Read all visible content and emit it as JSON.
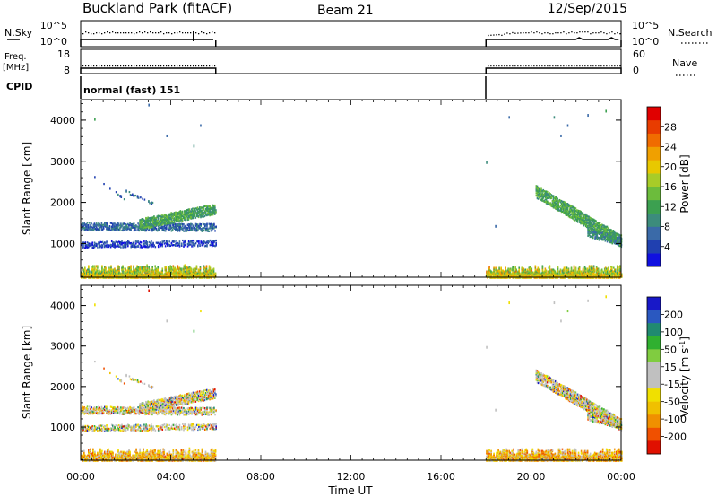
{
  "header": {
    "site": "Buckland Park (fitACF)",
    "beam": "Beam 21",
    "date": "12/Sep/2015"
  },
  "status_panels": {
    "nsky_label": "N.Sky",
    "nsearch_label": "N.Search",
    "freq_label": "Freq.",
    "freq_unit": "[MHz]",
    "nave_label": "Nave",
    "cpid_label": "CPID",
    "cpid_text": "normal (fast) 151",
    "noise_left_ticks": [
      "10^5",
      "10^0"
    ],
    "noise_right_ticks": [
      "10^5",
      "10^0"
    ],
    "freq_ticks": [
      "18",
      "8"
    ],
    "nave_ticks": [
      "60",
      "0"
    ]
  },
  "chart_data": [
    {
      "type": "heatmap",
      "quantity": "power",
      "ylabel": "Slant Range [km]",
      "xlabel": "Time UT",
      "x_ticks": [
        "00:00",
        "04:00",
        "08:00",
        "12:00",
        "16:00",
        "20:00",
        "00:00"
      ],
      "x_range_hours": [
        0,
        24
      ],
      "y_ticks": [
        1000,
        2000,
        3000,
        4000
      ],
      "ylim": [
        180,
        4500
      ],
      "data_intervals_hours": [
        [
          0,
          6
        ],
        [
          18,
          24
        ]
      ],
      "colorbar": {
        "label": "Power [dB]",
        "tick_labels": [
          "4",
          "8",
          "12",
          "16",
          "20",
          "24",
          "28"
        ],
        "colors": [
          "#1010e0",
          "#2040b0",
          "#3a6aa8",
          "#3c8c7c",
          "#3ca050",
          "#6cbc3c",
          "#a8cc28",
          "#e8c800",
          "#f0a000",
          "#f06c00",
          "#e83c00",
          "#e00000"
        ]
      },
      "features": [
        {
          "name": "near-range ground scatter",
          "t_hours": [
            0,
            6
          ],
          "range_km": [
            200,
            450
          ]
        },
        {
          "name": "morning scatter band",
          "t_hours": [
            0,
            6
          ],
          "range_km": [
            900,
            1600
          ]
        },
        {
          "name": "morning rising echo",
          "t_hours": [
            2.5,
            6
          ],
          "range_km": [
            1500,
            2000
          ]
        },
        {
          "name": "near-range ground scatter",
          "t_hours": [
            18,
            24
          ],
          "range_km": [
            200,
            450
          ]
        },
        {
          "name": "evening descending echo",
          "t_hours": [
            20,
            24
          ],
          "range_km": [
            900,
            2300
          ]
        }
      ]
    },
    {
      "type": "heatmap",
      "quantity": "velocity",
      "ylabel": "Slant Range [km]",
      "xlabel": "Time UT",
      "x_ticks": [
        "00:00",
        "04:00",
        "08:00",
        "12:00",
        "16:00",
        "20:00",
        "00:00"
      ],
      "x_range_hours": [
        0,
        24
      ],
      "y_ticks": [
        1000,
        2000,
        3000,
        4000
      ],
      "ylim": [
        180,
        4500
      ],
      "data_intervals_hours": [
        [
          0,
          6
        ],
        [
          18,
          24
        ]
      ],
      "colorbar": {
        "label": "Velocity [m s^-1]",
        "tick_labels": [
          "200",
          "100",
          "50",
          "15",
          "-15",
          "-50",
          "-100",
          "-200"
        ],
        "colors": [
          "#1818c8",
          "#2a58c0",
          "#208a70",
          "#30b030",
          "#80cc40",
          "#c0c0c0",
          "#c0c0c0",
          "#f0e000",
          "#f0c000",
          "#f09000",
          "#f05000",
          "#e01000"
        ]
      }
    }
  ]
}
